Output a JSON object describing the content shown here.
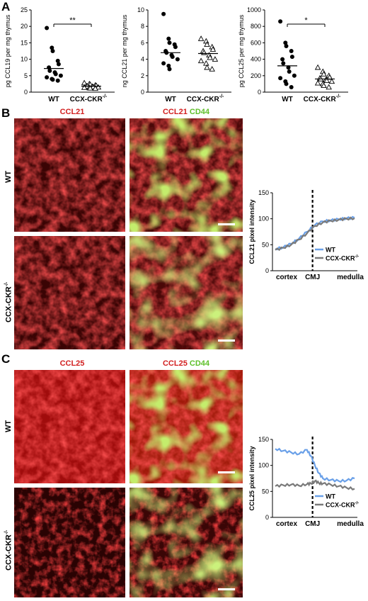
{
  "panels": {
    "a": "A",
    "b": "B",
    "c": "C"
  },
  "colors": {
    "wt": "#6aa0e8",
    "ccx": "#7a7a7a",
    "red_stain": "#d22020",
    "green_stain": "#5fbf2a"
  },
  "chart_data": [
    {
      "type": "scatter",
      "ylabel": "pg CCL19 per mg thymus",
      "categories": [
        "WT",
        "CCX-CKR",
        "-/-"
      ],
      "ylim": [
        0,
        25
      ],
      "yticks": [
        "0",
        "5",
        "10",
        "15",
        "20",
        "25"
      ],
      "significance": "**",
      "series": [
        {
          "name": "WT",
          "marker": "filled-circle",
          "mean": 7.2,
          "values": [
            19.5,
            13.5,
            12.5,
            9.5,
            8.5,
            7.5,
            6.5,
            6,
            5.5,
            5,
            4.5,
            4,
            3.8,
            3.5
          ]
        },
        {
          "name": "CCX-CKR-/-",
          "marker": "open-triangle",
          "mean": 1.8,
          "values": [
            2.8,
            2.5,
            2.3,
            2.1,
            2,
            1.9,
            1.8,
            1.7,
            1.6,
            1.5,
            1.4,
            1.3,
            1.2,
            1.1
          ]
        }
      ]
    },
    {
      "type": "scatter",
      "ylabel": "ng CCL21 per mg thymus",
      "categories": [
        "WT",
        "CCX-CKR",
        "-/-"
      ],
      "ylim": [
        0,
        10
      ],
      "yticks": [
        "0",
        "2",
        "4",
        "6",
        "8",
        "10"
      ],
      "significance": "",
      "series": [
        {
          "name": "WT",
          "marker": "filled-circle",
          "mean": 4.8,
          "values": [
            9.5,
            6.5,
            6,
            5.8,
            5.5,
            5,
            4.8,
            4.5,
            4.3,
            4,
            3.5,
            3.2,
            2.8
          ]
        },
        {
          "name": "CCX-CKR-/-",
          "marker": "open-triangle",
          "mean": 4.7,
          "values": [
            6.5,
            6.2,
            5.8,
            5.5,
            5.2,
            5,
            4.8,
            4.5,
            4.2,
            4,
            3.8,
            3.5,
            3,
            2.8
          ]
        }
      ]
    },
    {
      "type": "scatter",
      "ylabel": "pg CCL25 per mg thymus",
      "categories": [
        "WT",
        "CCX-CKR",
        "-/-"
      ],
      "ylim": [
        0,
        1000
      ],
      "yticks": [
        "0",
        "200",
        "400",
        "600",
        "800",
        "1000"
      ],
      "significance": "*",
      "series": [
        {
          "name": "WT",
          "marker": "filled-circle",
          "mean": 320,
          "values": [
            860,
            600,
            560,
            500,
            430,
            400,
            350,
            300,
            250,
            200,
            170,
            130,
            100,
            60
          ]
        },
        {
          "name": "CCX-CKR-/-",
          "marker": "open-triangle",
          "mean": 160,
          "values": [
            300,
            250,
            220,
            200,
            180,
            170,
            160,
            150,
            140,
            130,
            110,
            100,
            80,
            60
          ]
        }
      ]
    },
    {
      "type": "line",
      "ylabel": "CCL21 pixel intensity",
      "ylim": [
        0,
        150
      ],
      "yticks": [
        "0",
        "50",
        "100",
        "150"
      ],
      "xlabels": [
        "cortex",
        "CMJ",
        "medulla"
      ],
      "legend": [
        "WT",
        "CCX-CKR",
        "-/-"
      ],
      "legend_position": "bottom-right",
      "x": [
        0,
        10,
        20,
        30,
        40,
        50,
        60,
        70,
        80,
        90,
        100
      ],
      "series": [
        {
          "name": "WT",
          "values": [
            42,
            45,
            52,
            62,
            75,
            88,
            95,
            97,
            99,
            101,
            102
          ]
        },
        {
          "name": "CCX-CKR-/-",
          "values": [
            40,
            44,
            50,
            60,
            72,
            86,
            93,
            96,
            98,
            100,
            101
          ]
        }
      ]
    },
    {
      "type": "line",
      "ylabel": "CCL25 pixel intensity",
      "ylim": [
        0,
        150
      ],
      "yticks": [
        "0",
        "50",
        "100",
        "150"
      ],
      "xlabels": [
        "cortex",
        "CMJ",
        "medulla"
      ],
      "legend": [
        "WT",
        "CCX-CKR",
        "-/-"
      ],
      "legend_position": "bottom-right",
      "x": [
        0,
        10,
        20,
        30,
        40,
        45,
        50,
        55,
        60,
        70,
        80,
        90,
        100
      ],
      "series": [
        {
          "name": "WT",
          "values": [
            132,
            128,
            125,
            122,
            130,
            118,
            100,
            85,
            75,
            72,
            70,
            71,
            75
          ]
        },
        {
          "name": "CCX-CKR-/-",
          "values": [
            60,
            62,
            63,
            61,
            64,
            65,
            70,
            66,
            65,
            63,
            60,
            57,
            55
          ]
        }
      ]
    }
  ],
  "images": {
    "b": {
      "col1": "CCL21",
      "col2_red": "CCL21",
      "col2_green": "CD44",
      "row1": "WT",
      "row2_main": "CCX-CKR",
      "row2_sup": "-/-"
    },
    "c": {
      "col1": "CCL25",
      "col2_red": "CCL25",
      "col2_green": "CD44",
      "row1": "WT",
      "row2_main": "CCX-CKR",
      "row2_sup": "-/-"
    }
  }
}
